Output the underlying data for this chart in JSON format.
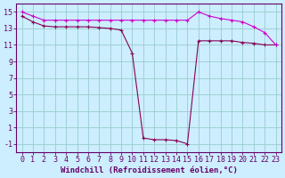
{
  "line1": {
    "x": [
      0,
      1,
      2,
      3,
      4,
      5,
      6,
      7,
      8,
      9,
      10,
      11,
      12,
      13,
      14,
      15,
      16,
      17,
      18,
      19,
      20,
      21,
      22,
      23
    ],
    "y": [
      15.0,
      14.5,
      14.0,
      14.0,
      14.0,
      14.0,
      14.0,
      14.0,
      14.0,
      14.0,
      14.0,
      14.0,
      14.0,
      14.0,
      14.0,
      14.0,
      15.0,
      14.5,
      14.2,
      14.0,
      13.8,
      13.2,
      12.5,
      11.0
    ],
    "color": "#cc00cc",
    "marker": "+"
  },
  "line2": {
    "x": [
      0,
      1,
      2,
      3,
      4,
      5,
      6,
      7,
      8,
      9,
      10,
      11,
      12,
      13,
      14,
      15,
      16,
      17,
      18,
      19,
      20,
      21,
      22,
      23
    ],
    "y": [
      14.5,
      13.8,
      13.3,
      13.2,
      13.2,
      13.2,
      13.2,
      13.1,
      13.0,
      12.8,
      10.0,
      -0.3,
      -0.5,
      -0.5,
      -0.6,
      -1.0,
      11.5,
      11.5,
      11.5,
      11.5,
      11.3,
      11.2,
      11.0,
      11.0
    ],
    "color": "#880055",
    "marker": "+"
  },
  "bg_color": "#cceeff",
  "grid_color": "#99cccc",
  "axes_color": "#660066",
  "text_color": "#660066",
  "xlabel": "Windchill (Refroidissement éolien,°C)",
  "xlabel_fontsize": 6.5,
  "tick_fontsize": 6,
  "yticks": [
    -1,
    1,
    3,
    5,
    7,
    9,
    11,
    13,
    15
  ],
  "xticks": [
    0,
    1,
    2,
    3,
    4,
    5,
    6,
    7,
    8,
    9,
    10,
    11,
    12,
    13,
    14,
    15,
    16,
    17,
    18,
    19,
    20,
    21,
    22,
    23
  ],
  "ylim": [
    -2,
    16
  ],
  "xlim": [
    -0.5,
    23.5
  ]
}
